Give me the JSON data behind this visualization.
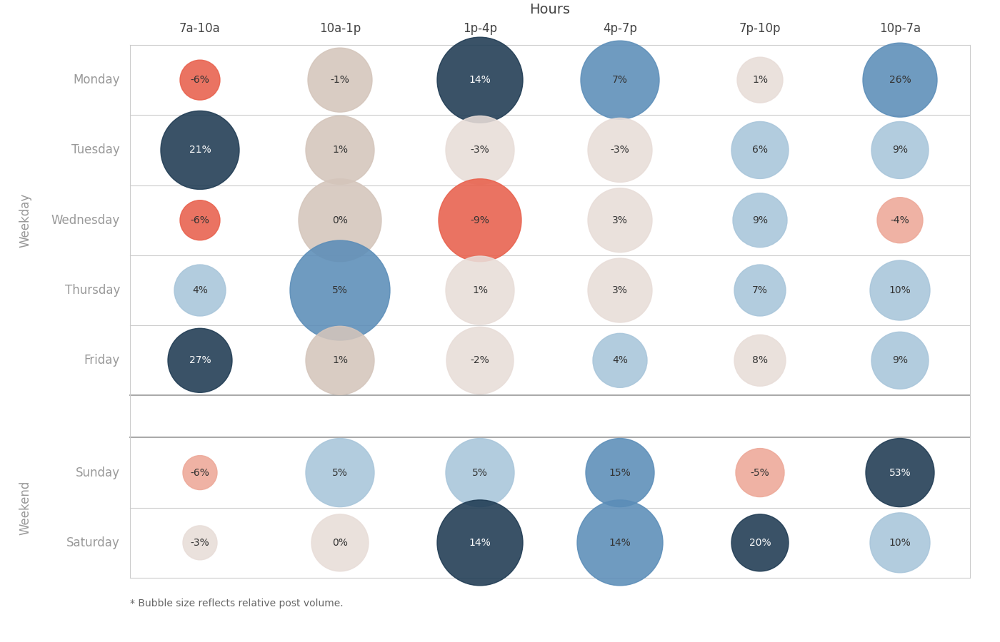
{
  "title": "Hours",
  "footnote": "* Bubble size reflects relative post volume.",
  "col_labels": [
    "7a-10a",
    "10a-1p",
    "1p-4p",
    "4p-7p",
    "7p-10p",
    "10p-7a"
  ],
  "row_labels": [
    "Monday",
    "Tuesday",
    "Wednesday",
    "Thursday",
    "Friday",
    "Sunday",
    "Saturday"
  ],
  "weekday_label": "Weekday",
  "weekend_label": "Weekend",
  "weekday_rows": [
    0,
    1,
    2,
    3,
    4
  ],
  "weekend_rows": [
    5,
    6
  ],
  "values": [
    [
      -6,
      -1,
      14,
      7,
      1,
      26
    ],
    [
      21,
      1,
      -3,
      -3,
      6,
      9
    ],
    [
      -6,
      0,
      -9,
      3,
      9,
      -4
    ],
    [
      4,
      5,
      1,
      3,
      7,
      10
    ],
    [
      27,
      1,
      -2,
      4,
      8,
      9
    ],
    [
      -6,
      5,
      5,
      15,
      -5,
      53
    ],
    [
      -3,
      0,
      14,
      14,
      20,
      10
    ]
  ],
  "bubble_sizes_pts": [
    [
      28,
      45,
      60,
      55,
      32,
      52
    ],
    [
      55,
      48,
      48,
      45,
      40,
      40
    ],
    [
      28,
      58,
      58,
      45,
      38,
      32
    ],
    [
      36,
      70,
      48,
      45,
      36,
      42
    ],
    [
      45,
      48,
      47,
      38,
      36,
      40
    ],
    [
      24,
      48,
      48,
      48,
      34,
      48
    ],
    [
      24,
      40,
      60,
      60,
      40,
      42
    ]
  ],
  "colors": {
    "dark_blue": "#1e3a52",
    "medium_blue": "#5b8db8",
    "light_blue": "#a8c5da",
    "red_orange": "#e8604c",
    "light_red": "#eda898",
    "beige": "#d4c5bb",
    "light_beige": "#e8ddd8"
  },
  "cell_colors": [
    [
      "red_orange",
      "beige",
      "dark_blue",
      "medium_blue",
      "light_beige",
      "medium_blue"
    ],
    [
      "dark_blue",
      "beige",
      "light_beige",
      "light_beige",
      "light_blue",
      "light_blue"
    ],
    [
      "red_orange",
      "beige",
      "red_orange",
      "light_beige",
      "light_blue",
      "light_red"
    ],
    [
      "light_blue",
      "medium_blue",
      "light_beige",
      "light_beige",
      "light_blue",
      "light_blue"
    ],
    [
      "dark_blue",
      "beige",
      "light_beige",
      "light_blue",
      "light_beige",
      "light_blue"
    ],
    [
      "light_red",
      "light_blue",
      "light_blue",
      "medium_blue",
      "light_red",
      "dark_blue"
    ],
    [
      "light_beige",
      "light_beige",
      "dark_blue",
      "medium_blue",
      "dark_blue",
      "light_blue"
    ]
  ],
  "bg_color": "#ffffff",
  "grid_color": "#cccccc",
  "separator_color": "#aaaaaa",
  "text_color": "#444444",
  "label_color": "#999999"
}
